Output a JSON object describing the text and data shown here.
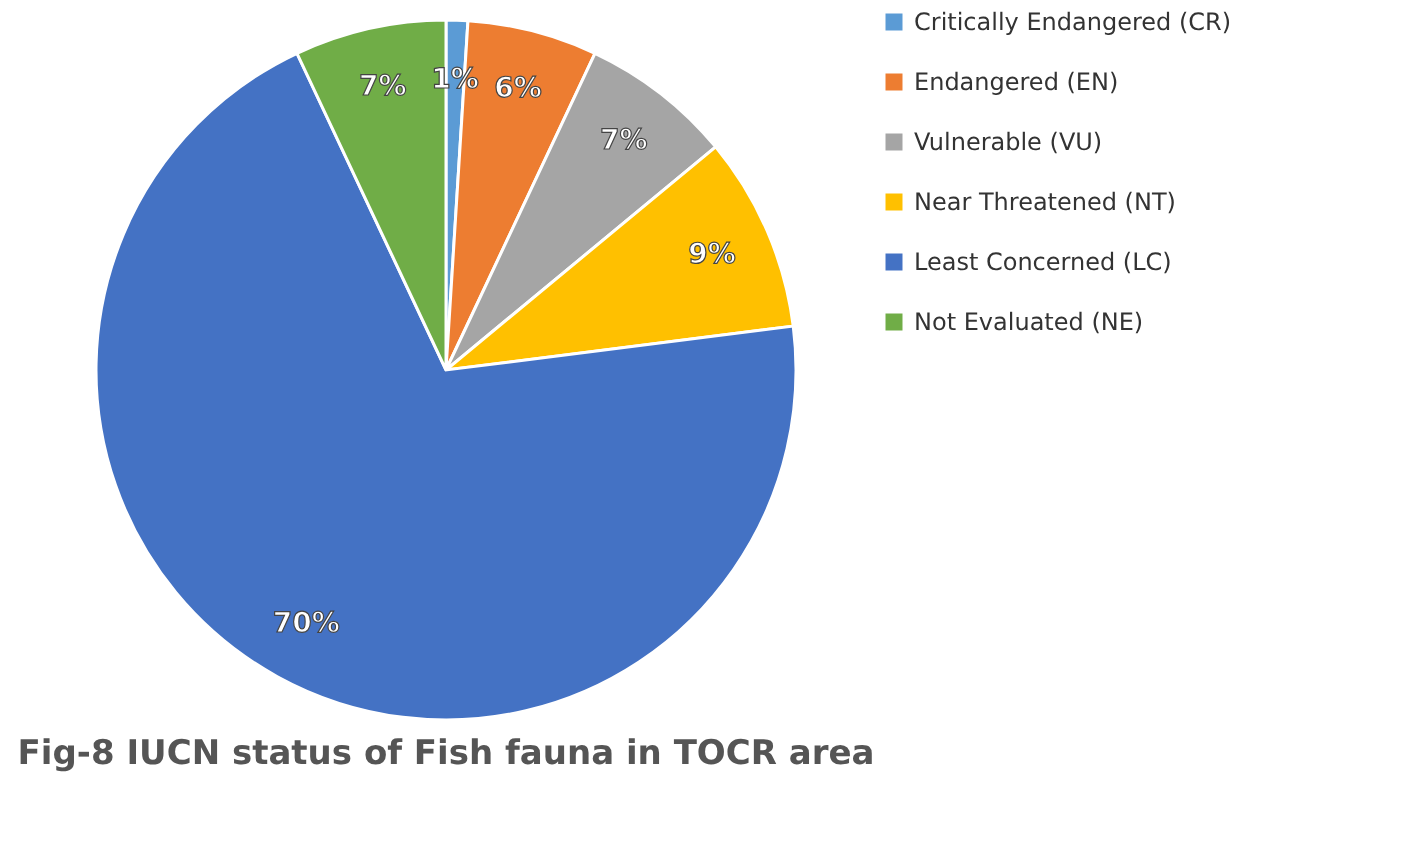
{
  "chart_data": {
    "type": "pie",
    "title": "Fig-8  IUCN status of Fish fauna in TOCR area",
    "categories": [
      "Critically Endangered (CR)",
      "Endangered (EN)",
      "Vulnerable (VU)",
      "Near Threatened (NT)",
      "Least Concerned (LC)",
      "Not Evaluated (NE)"
    ],
    "values": [
      1,
      6,
      7,
      9,
      70,
      7
    ],
    "colors": [
      "#5b9bd5",
      "#ed7d31",
      "#a5a5a5",
      "#ffc000",
      "#4472c4",
      "#70ad47"
    ],
    "value_labels": [
      "1%",
      "6%",
      "7%",
      "9%",
      "70%",
      "7%"
    ],
    "legend": "right"
  }
}
